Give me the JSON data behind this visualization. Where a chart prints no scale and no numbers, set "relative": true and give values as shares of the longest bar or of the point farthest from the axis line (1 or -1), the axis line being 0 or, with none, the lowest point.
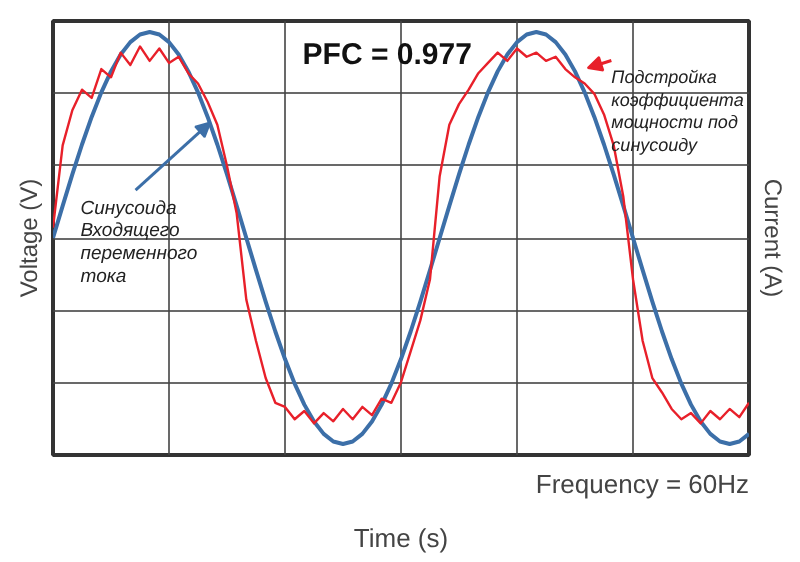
{
  "chart_data": {
    "type": "line",
    "relative": true,
    "grid": true,
    "xlabel": "Time (s)",
    "ylabel": "Voltage (V)",
    "y2label": "Current (A)",
    "categories": [
      null,
      null,
      null,
      null,
      null,
      null,
      null,
      null,
      null,
      null,
      null,
      null,
      null,
      null,
      null,
      null,
      null,
      null,
      null,
      null,
      null,
      null,
      null,
      null,
      null,
      null,
      null,
      null,
      null,
      null,
      null,
      null,
      null,
      null,
      null,
      null,
      null,
      null,
      null,
      null,
      null,
      null,
      null,
      null,
      null,
      null,
      null,
      null,
      null,
      null,
      null,
      null,
      null,
      null,
      null,
      null,
      null,
      null,
      null,
      null,
      null,
      null,
      null,
      null,
      null,
      null,
      null,
      null,
      null,
      null,
      null,
      null,
      null
    ],
    "series": [
      {
        "color": "#3c6fa8",
        "values": [
          0,
          0.156,
          0.309,
          0.454,
          0.588,
          0.707,
          0.809,
          0.891,
          0.951,
          0.988,
          1,
          0.988,
          0.951,
          0.891,
          0.809,
          0.707,
          0.588,
          0.454,
          0.309,
          0.156,
          0,
          -0.156,
          -0.309,
          -0.454,
          -0.588,
          -0.707,
          -0.809,
          -0.891,
          -0.951,
          -0.988,
          -1,
          -0.988,
          -0.951,
          -0.891,
          -0.809,
          -0.707,
          -0.588,
          -0.454,
          -0.309,
          -0.156,
          0,
          0.156,
          0.309,
          0.454,
          0.588,
          0.707,
          0.809,
          0.891,
          0.951,
          0.988,
          1,
          0.988,
          0.951,
          0.891,
          0.809,
          0.707,
          0.588,
          0.454,
          0.309,
          0.156,
          0,
          -0.156,
          -0.309,
          -0.454,
          -0.588,
          -0.707,
          -0.809,
          -0.891,
          -0.951,
          -0.988,
          -1,
          -0.988,
          -0.951
        ]
      },
      {
        "color": "#e8202a",
        "values": [
          0.05,
          0.45,
          0.62,
          0.72,
          0.68,
          0.82,
          0.78,
          0.9,
          0.84,
          0.93,
          0.86,
          0.92,
          0.85,
          0.88,
          0.8,
          0.75,
          0.66,
          0.55,
          0.35,
          0.12,
          -0.3,
          -0.5,
          -0.68,
          -0.8,
          -0.82,
          -0.88,
          -0.84,
          -0.9,
          -0.85,
          -0.89,
          -0.83,
          -0.88,
          -0.82,
          -0.86,
          -0.78,
          -0.8,
          -0.7,
          -0.55,
          -0.4,
          -0.2,
          0.3,
          0.55,
          0.65,
          0.72,
          0.8,
          0.85,
          0.9,
          0.86,
          0.92,
          0.88,
          0.9,
          0.86,
          0.88,
          0.82,
          0.78,
          0.75,
          0.7,
          0.6,
          0.45,
          0.2,
          -0.2,
          -0.5,
          -0.68,
          -0.75,
          -0.83,
          -0.88,
          -0.85,
          -0.9,
          -0.84,
          -0.88,
          -0.83,
          -0.87,
          -0.8
        ]
      }
    ],
    "annotations": [
      "PFC = 0.977",
      "Подстройка\nкоэффициента\nмощности под\nсинусоиду",
      "Синусоида\nВходящего\nпеременного\nтока",
      "Frequency = 60Hz"
    ]
  }
}
